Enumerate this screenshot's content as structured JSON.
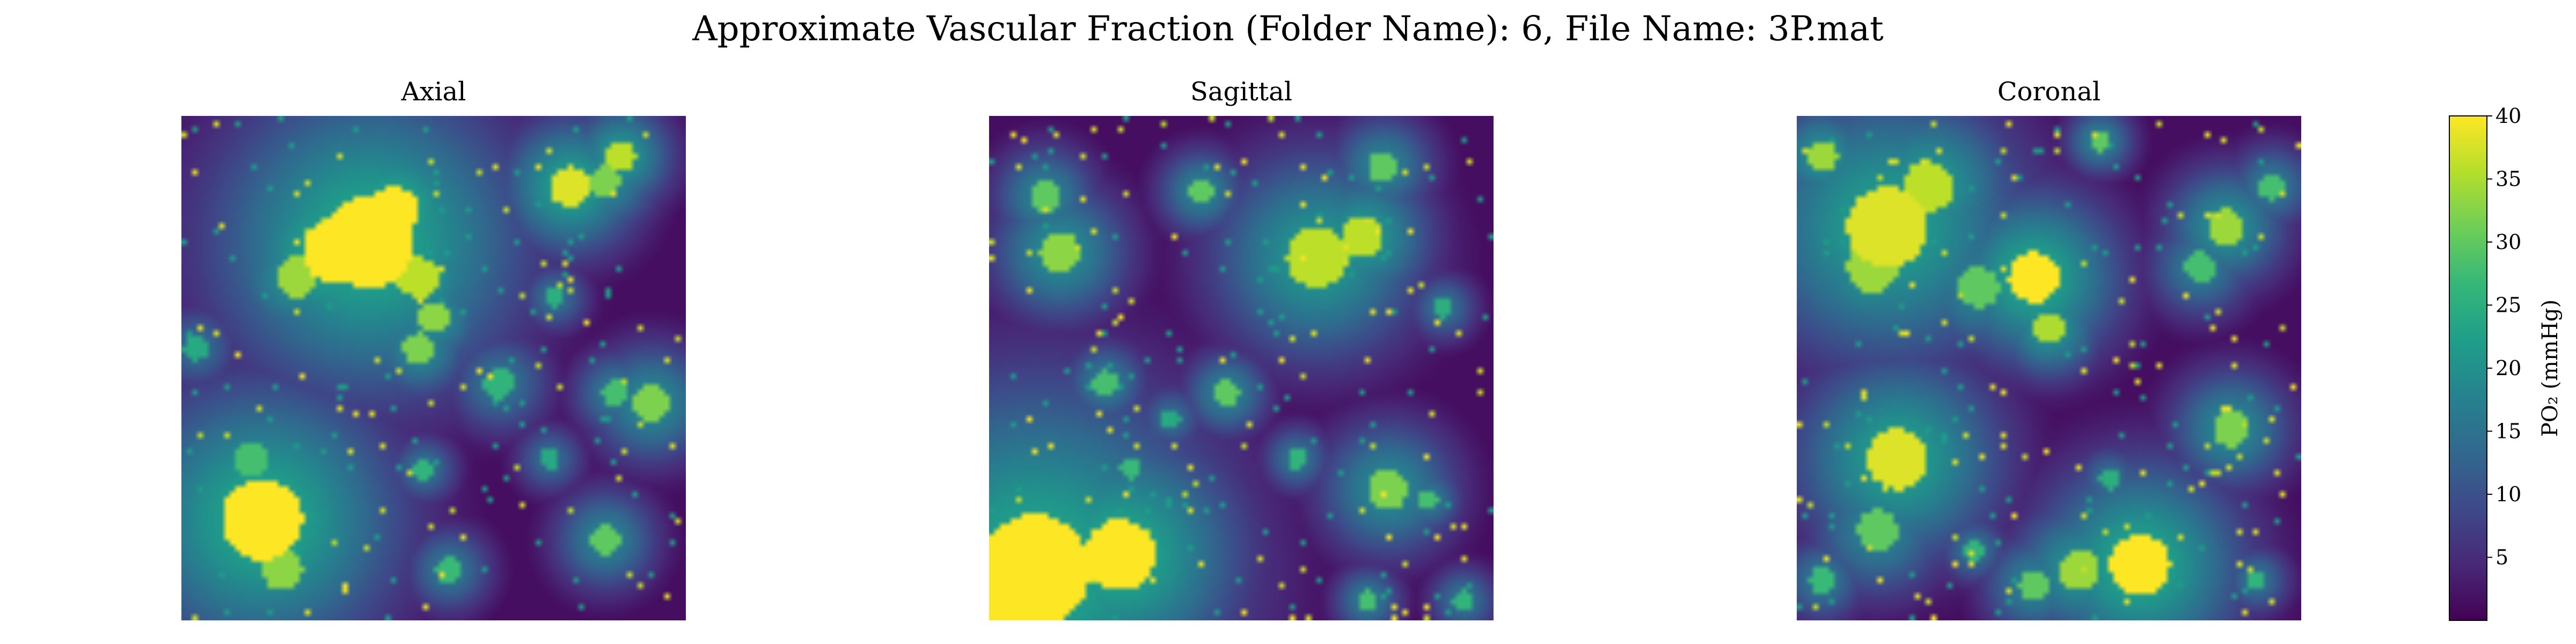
{
  "suptitle": "Approximate Vascular Fraction (Folder Name): 6, File Name: 3P.mat",
  "panels": [
    {
      "title": "Axial"
    },
    {
      "title": "Sagittal"
    },
    {
      "title": "Coronal"
    }
  ],
  "colorbar": {
    "label": "PO₂ (mmHg)",
    "vmin": 0,
    "vmax": 40,
    "ticks": [
      "5",
      "10",
      "15",
      "20",
      "25",
      "30",
      "35",
      "40"
    ],
    "colormap": "viridis"
  },
  "chart_data": {
    "type": "heatmap",
    "title": "Approximate Vascular Fraction (Folder Name): 6, File Name: 3P.mat",
    "subplots": [
      "Axial",
      "Sagittal",
      "Coronal"
    ],
    "colorbar_label": "PO₂ (mmHg)",
    "value_range": [
      0,
      40
    ],
    "colorbar_ticks": [
      5,
      10,
      15,
      20,
      25,
      30,
      35,
      40
    ],
    "grid": false,
    "axes_visible": false,
    "slices": [
      {
        "name": "Axial",
        "hotspots": [
          {
            "x": 0.37,
            "y": 0.25,
            "r": 0.09,
            "value": 40
          },
          {
            "x": 0.42,
            "y": 0.19,
            "r": 0.05,
            "value": 40
          },
          {
            "x": 0.3,
            "y": 0.27,
            "r": 0.06,
            "value": 40
          },
          {
            "x": 0.47,
            "y": 0.32,
            "r": 0.04,
            "value": 36
          },
          {
            "x": 0.5,
            "y": 0.4,
            "r": 0.03,
            "value": 33
          },
          {
            "x": 0.47,
            "y": 0.46,
            "r": 0.03,
            "value": 32
          },
          {
            "x": 0.23,
            "y": 0.32,
            "r": 0.04,
            "value": 34
          },
          {
            "x": 0.16,
            "y": 0.8,
            "r": 0.08,
            "value": 40
          },
          {
            "x": 0.2,
            "y": 0.9,
            "r": 0.04,
            "value": 33
          },
          {
            "x": 0.14,
            "y": 0.68,
            "r": 0.035,
            "value": 28
          },
          {
            "x": 0.77,
            "y": 0.14,
            "r": 0.04,
            "value": 38
          },
          {
            "x": 0.87,
            "y": 0.08,
            "r": 0.03,
            "value": 36
          },
          {
            "x": 0.84,
            "y": 0.13,
            "r": 0.03,
            "value": 32
          },
          {
            "x": 0.93,
            "y": 0.57,
            "r": 0.035,
            "value": 32
          },
          {
            "x": 0.86,
            "y": 0.55,
            "r": 0.025,
            "value": 28
          },
          {
            "x": 0.63,
            "y": 0.53,
            "r": 0.03,
            "value": 26
          },
          {
            "x": 0.84,
            "y": 0.84,
            "r": 0.03,
            "value": 30
          },
          {
            "x": 0.48,
            "y": 0.7,
            "r": 0.02,
            "value": 26
          },
          {
            "x": 0.53,
            "y": 0.9,
            "r": 0.025,
            "value": 27
          },
          {
            "x": 0.03,
            "y": 0.46,
            "r": 0.025,
            "value": 24
          },
          {
            "x": 0.74,
            "y": 0.36,
            "r": 0.02,
            "value": 25
          },
          {
            "x": 0.73,
            "y": 0.68,
            "r": 0.02,
            "value": 24
          }
        ]
      },
      {
        "name": "Sagittal",
        "hotspots": [
          {
            "x": 0.09,
            "y": 0.9,
            "r": 0.11,
            "value": 40
          },
          {
            "x": 0.26,
            "y": 0.87,
            "r": 0.07,
            "value": 40
          },
          {
            "x": 0.05,
            "y": 0.97,
            "r": 0.06,
            "value": 40
          },
          {
            "x": 0.65,
            "y": 0.28,
            "r": 0.06,
            "value": 36
          },
          {
            "x": 0.74,
            "y": 0.24,
            "r": 0.04,
            "value": 36
          },
          {
            "x": 0.14,
            "y": 0.27,
            "r": 0.04,
            "value": 33
          },
          {
            "x": 0.11,
            "y": 0.16,
            "r": 0.03,
            "value": 30
          },
          {
            "x": 0.42,
            "y": 0.15,
            "r": 0.025,
            "value": 30
          },
          {
            "x": 0.78,
            "y": 0.1,
            "r": 0.03,
            "value": 30
          },
          {
            "x": 0.79,
            "y": 0.74,
            "r": 0.04,
            "value": 32
          },
          {
            "x": 0.87,
            "y": 0.76,
            "r": 0.02,
            "value": 28
          },
          {
            "x": 0.47,
            "y": 0.55,
            "r": 0.025,
            "value": 30
          },
          {
            "x": 0.23,
            "y": 0.53,
            "r": 0.025,
            "value": 28
          },
          {
            "x": 0.61,
            "y": 0.68,
            "r": 0.02,
            "value": 26
          },
          {
            "x": 0.75,
            "y": 0.96,
            "r": 0.02,
            "value": 28
          },
          {
            "x": 0.94,
            "y": 0.96,
            "r": 0.02,
            "value": 26
          },
          {
            "x": 0.28,
            "y": 0.7,
            "r": 0.02,
            "value": 27
          },
          {
            "x": 0.9,
            "y": 0.38,
            "r": 0.02,
            "value": 25
          },
          {
            "x": 0.36,
            "y": 0.6,
            "r": 0.02,
            "value": 24
          }
        ]
      },
      {
        "name": "Coronal",
        "hotspots": [
          {
            "x": 0.18,
            "y": 0.22,
            "r": 0.08,
            "value": 38
          },
          {
            "x": 0.26,
            "y": 0.14,
            "r": 0.05,
            "value": 36
          },
          {
            "x": 0.15,
            "y": 0.3,
            "r": 0.05,
            "value": 34
          },
          {
            "x": 0.47,
            "y": 0.32,
            "r": 0.05,
            "value": 40
          },
          {
            "x": 0.5,
            "y": 0.42,
            "r": 0.03,
            "value": 35
          },
          {
            "x": 0.36,
            "y": 0.34,
            "r": 0.04,
            "value": 30
          },
          {
            "x": 0.85,
            "y": 0.22,
            "r": 0.035,
            "value": 34
          },
          {
            "x": 0.8,
            "y": 0.3,
            "r": 0.03,
            "value": 28
          },
          {
            "x": 0.2,
            "y": 0.68,
            "r": 0.06,
            "value": 38
          },
          {
            "x": 0.16,
            "y": 0.82,
            "r": 0.04,
            "value": 30
          },
          {
            "x": 0.68,
            "y": 0.89,
            "r": 0.06,
            "value": 40
          },
          {
            "x": 0.56,
            "y": 0.9,
            "r": 0.04,
            "value": 34
          },
          {
            "x": 0.47,
            "y": 0.93,
            "r": 0.03,
            "value": 30
          },
          {
            "x": 0.86,
            "y": 0.62,
            "r": 0.035,
            "value": 32
          },
          {
            "x": 0.05,
            "y": 0.08,
            "r": 0.03,
            "value": 34
          },
          {
            "x": 0.94,
            "y": 0.14,
            "r": 0.025,
            "value": 28
          },
          {
            "x": 0.6,
            "y": 0.05,
            "r": 0.02,
            "value": 30
          },
          {
            "x": 0.35,
            "y": 0.86,
            "r": 0.02,
            "value": 26
          },
          {
            "x": 0.91,
            "y": 0.92,
            "r": 0.02,
            "value": 26
          },
          {
            "x": 0.62,
            "y": 0.72,
            "r": 0.02,
            "value": 25
          },
          {
            "x": 0.05,
            "y": 0.92,
            "r": 0.025,
            "value": 27
          }
        ]
      }
    ]
  }
}
